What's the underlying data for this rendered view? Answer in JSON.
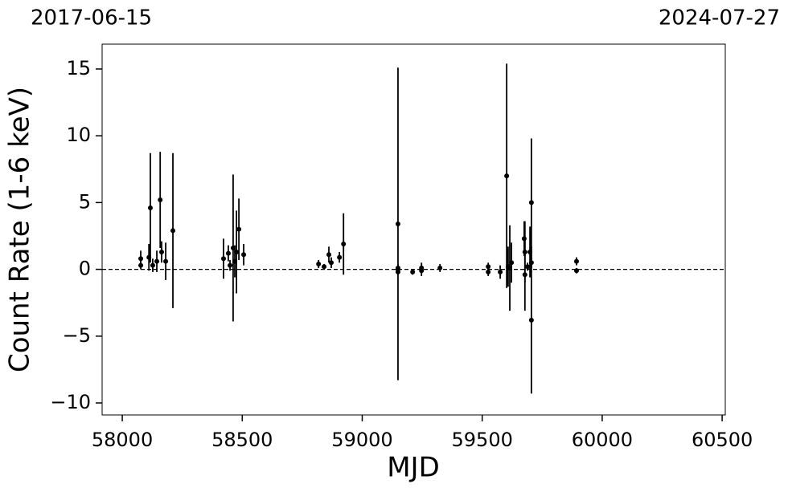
{
  "chart_data": {
    "type": "errorbar",
    "xlabel": "MJD",
    "ylabel": "Count Rate (1-6 keV)",
    "top_labels": [
      "2017-06-15",
      "2024-07-27"
    ],
    "xlim": [
      57916,
      60513
    ],
    "ylim": [
      -10.9,
      16.86
    ],
    "xticks": [
      58000,
      58500,
      59000,
      59500,
      60000,
      60500
    ],
    "yticks": [
      {
        "value": -10,
        "label": "−10"
      },
      {
        "value": -5,
        "label": "−5"
      },
      0,
      5,
      10,
      15
    ],
    "hline": 0,
    "color": "#000000",
    "series": [
      {
        "name": null,
        "color": "#000000",
        "x": [
          58077,
          58077,
          58111,
          58117,
          58127,
          58144,
          58158,
          58164,
          58181,
          58211,
          58422,
          58442,
          58449,
          58462,
          58469,
          58476,
          58486,
          58506,
          58818,
          58841,
          58861,
          58871,
          58905,
          58922,
          59149,
          59149,
          59149,
          59149,
          59210,
          59247,
          59247,
          59324,
          59525,
          59525,
          59575,
          59602,
          59608,
          59615,
          59622,
          59675,
          59678,
          59678,
          59689,
          59699,
          59705,
          59705,
          59705,
          59893,
          59893
        ],
        "values": [
          0.8,
          0.3,
          0.9,
          4.6,
          0.3,
          0.6,
          5.2,
          1.3,
          0.6,
          2.9,
          0.8,
          1.2,
          0.3,
          1.6,
          0.6,
          1.3,
          3.0,
          1.1,
          0.4,
          0.2,
          1.1,
          0.5,
          0.9,
          1.9,
          3.4,
          0.1,
          0,
          -0.2,
          -0.2,
          -0.1,
          0.1,
          0.1,
          -0.2,
          0.2,
          -0.2,
          7.0,
          0.2,
          0.1,
          0.5,
          2.3,
          1.3,
          -0.4,
          0.2,
          1.3,
          5.0,
          -3.8,
          0.5,
          0.6,
          -0.1
        ],
        "errors": [
          0.6,
          0.3,
          1.0,
          4.1,
          0.5,
          0.8,
          3.6,
          0.8,
          1.4,
          5.8,
          1.5,
          0.6,
          0.4,
          5.5,
          1.2,
          3.1,
          2.3,
          0.8,
          0.3,
          0.2,
          0.6,
          0.4,
          0.4,
          2.3,
          11.7,
          0.3,
          0.2,
          0.2,
          0.2,
          0.4,
          0.4,
          0.3,
          0.3,
          0.3,
          0.5,
          8.4,
          1.5,
          3.2,
          1.5,
          1.3,
          2.3,
          2.7,
          0.3,
          1.9,
          4.8,
          5.5,
          0.4,
          0.3,
          0.2
        ]
      }
    ]
  }
}
